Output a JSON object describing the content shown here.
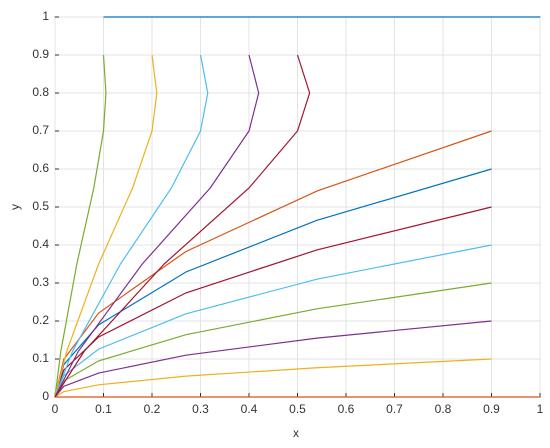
{
  "chart_data": {
    "type": "line",
    "xlabel": "x",
    "ylabel": "y",
    "xlim": [
      0,
      1
    ],
    "ylim": [
      0,
      1
    ],
    "xticks": [
      0,
      0.1,
      0.2,
      0.3,
      0.4,
      0.5,
      0.6,
      0.7,
      0.8,
      0.9,
      1
    ],
    "yticks": [
      0,
      0.1,
      0.2,
      0.3,
      0.4,
      0.5,
      0.6,
      0.7,
      0.8,
      0.9,
      1
    ],
    "grid": true,
    "series": [
      {
        "color": "#0072bd",
        "x": [
          0.1,
          1
        ],
        "y": [
          1,
          1
        ]
      },
      {
        "color": "#d95319",
        "x": [
          0,
          1
        ],
        "y": [
          0,
          0
        ]
      },
      {
        "color": "#edb120",
        "x": [
          0,
          0.018,
          0.09,
          0.27,
          0.54,
          0.9
        ],
        "y": [
          0,
          0.014,
          0.032,
          0.055,
          0.077,
          0.1
        ]
      },
      {
        "color": "#7e2f8e",
        "x": [
          0,
          0.018,
          0.09,
          0.27,
          0.54,
          0.9
        ],
        "y": [
          0,
          0.028,
          0.063,
          0.11,
          0.155,
          0.2
        ]
      },
      {
        "color": "#77ac30",
        "x": [
          0,
          0.018,
          0.09,
          0.27,
          0.54,
          0.9
        ],
        "y": [
          0,
          0.042,
          0.095,
          0.164,
          0.232,
          0.3
        ]
      },
      {
        "color": "#4dbeee",
        "x": [
          0,
          0.018,
          0.09,
          0.27,
          0.54,
          0.9
        ],
        "y": [
          0,
          0.056,
          0.126,
          0.219,
          0.31,
          0.4
        ]
      },
      {
        "color": "#a2142f",
        "x": [
          0,
          0.018,
          0.09,
          0.27,
          0.54,
          0.9
        ],
        "y": [
          0,
          0.071,
          0.158,
          0.274,
          0.387,
          0.5
        ]
      },
      {
        "color": "#0072bd",
        "x": [
          0,
          0.018,
          0.09,
          0.27,
          0.54,
          0.9
        ],
        "y": [
          0,
          0.085,
          0.19,
          0.329,
          0.465,
          0.6
        ]
      },
      {
        "color": "#d95319",
        "x": [
          0,
          0.018,
          0.09,
          0.27,
          0.54,
          0.9
        ],
        "y": [
          0,
          0.099,
          0.221,
          0.383,
          0.542,
          0.7
        ]
      },
      {
        "color": "#77ac30",
        "x": [
          0.1,
          0.105,
          0.1,
          0.08,
          0.045,
          0.012,
          0
        ],
        "y": [
          0.9,
          0.8,
          0.7,
          0.55,
          0.35,
          0.12,
          0
        ]
      },
      {
        "color": "#edb120",
        "x": [
          0.2,
          0.21,
          0.2,
          0.16,
          0.09,
          0.024,
          0
        ],
        "y": [
          0.9,
          0.8,
          0.7,
          0.55,
          0.35,
          0.12,
          0
        ]
      },
      {
        "color": "#4dbeee",
        "x": [
          0.3,
          0.315,
          0.3,
          0.24,
          0.135,
          0.036,
          0
        ],
        "y": [
          0.9,
          0.8,
          0.7,
          0.55,
          0.35,
          0.12,
          0
        ]
      },
      {
        "color": "#7e2f8e",
        "x": [
          0.4,
          0.42,
          0.4,
          0.32,
          0.18,
          0.048,
          0
        ],
        "y": [
          0.9,
          0.8,
          0.7,
          0.55,
          0.35,
          0.12,
          0
        ]
      },
      {
        "color": "#a2142f",
        "x": [
          0.5,
          0.525,
          0.5,
          0.4,
          0.225,
          0.06,
          0
        ],
        "y": [
          0.9,
          0.8,
          0.7,
          0.55,
          0.35,
          0.12,
          0
        ]
      }
    ]
  }
}
